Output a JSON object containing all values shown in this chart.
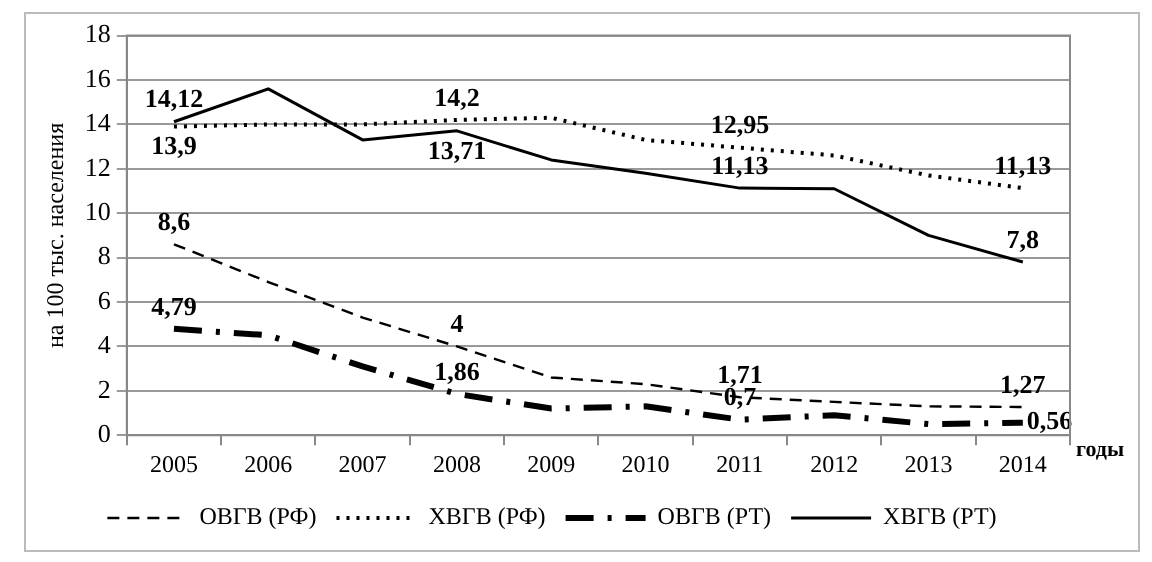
{
  "chart_data": {
    "type": "line",
    "xlabel": "годы",
    "ylabel": "на 100 тыс. населения",
    "categories": [
      "2005",
      "2006",
      "2007",
      "2008",
      "2009",
      "2010",
      "2011",
      "2012",
      "2013",
      "2014"
    ],
    "ylim": [
      0,
      18
    ],
    "yticks": [
      0,
      2,
      4,
      6,
      8,
      10,
      12,
      14,
      16,
      18
    ],
    "grid": "y",
    "legend": "bottom",
    "marker": "none",
    "series": [
      {
        "name": "ОВГВ (РФ)",
        "color": "#000000",
        "line_style": "dashed",
        "values": [
          8.6,
          6.9,
          5.3,
          4,
          2.6,
          2.3,
          1.71,
          1.5,
          1.3,
          1.27
        ],
        "value_labels": [
          "8,6",
          null,
          null,
          "4",
          null,
          null,
          "1,71",
          null,
          null,
          "1,27"
        ]
      },
      {
        "name": "ХВГВ (РФ)",
        "color": "#000000",
        "line_style": "dotted",
        "values": [
          13.9,
          14,
          14,
          14.2,
          14.3,
          13.3,
          12.95,
          12.6,
          11.7,
          11.13
        ],
        "value_labels": [
          "13,9",
          null,
          null,
          "14,2",
          null,
          null,
          "12,95",
          null,
          null,
          "11,13"
        ]
      },
      {
        "name": "ОВГВ (РТ)",
        "color": "#000000",
        "line_style": "dashdot",
        "values": [
          4.79,
          4.5,
          3.1,
          1.86,
          1.2,
          1.3,
          0.7,
          0.9,
          0.5,
          0.56
        ],
        "value_labels": [
          "4,79",
          null,
          null,
          "1,86",
          null,
          null,
          "0,7",
          null,
          null,
          "0,56"
        ]
      },
      {
        "name": "ХВГВ (РТ)",
        "color": "#000000",
        "line_style": "solid",
        "values": [
          14.12,
          15.6,
          13.3,
          13.71,
          12.4,
          11.8,
          11.13,
          11.1,
          9,
          7.8
        ],
        "value_labels": [
          "14,12",
          null,
          null,
          "13,71",
          null,
          null,
          "11,13",
          null,
          null,
          "7,8"
        ]
      }
    ]
  }
}
